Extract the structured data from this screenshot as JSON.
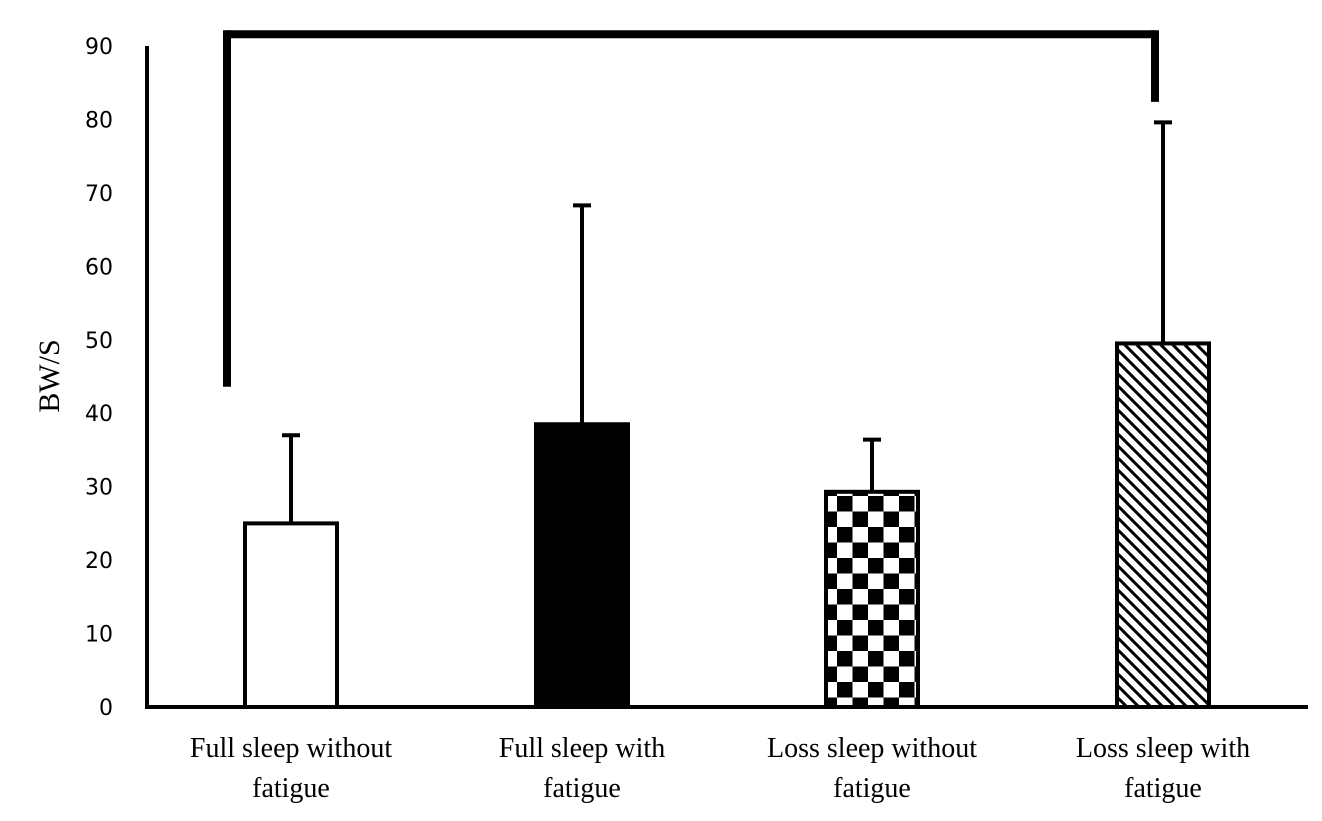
{
  "chart_data": {
    "type": "bar",
    "title": "",
    "xlabel": "",
    "ylabel": "BW/S",
    "ylim": [
      0,
      90
    ],
    "yticks": [
      "0",
      "10",
      "20",
      "30",
      "40",
      "50",
      "60",
      "70",
      "80",
      "90"
    ],
    "grid": false,
    "legend": "none",
    "categories": [
      [
        "Full sleep without",
        "fatigue"
      ],
      [
        "Full sleep with",
        "fatigue"
      ],
      [
        "Loss sleep without",
        "fatigue"
      ],
      [
        "Loss sleep with",
        "fatigue"
      ]
    ],
    "values": [
      25,
      38.5,
      29.3,
      49.5
    ],
    "error_upper": [
      37,
      68.3,
      36.4,
      79.6
    ],
    "fills": [
      "white",
      "solid-black",
      "checkerboard",
      "diagonal-hatch"
    ],
    "significance_bracket": {
      "from_category": 0,
      "to_category": 3,
      "top": 91.6,
      "left_end": 43.6,
      "right_end": 82.4
    },
    "colors": {
      "ink": "#000000",
      "background": "#ffffff"
    }
  }
}
